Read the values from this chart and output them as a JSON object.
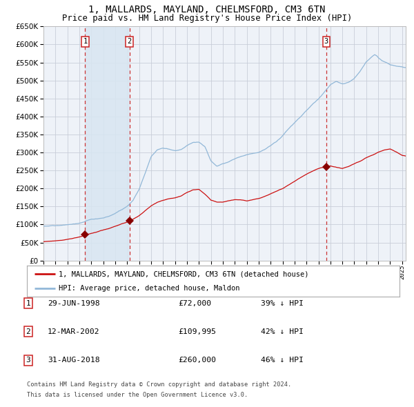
{
  "title": "1, MALLARDS, MAYLAND, CHELMSFORD, CM3 6TN",
  "subtitle": "Price paid vs. HM Land Registry's House Price Index (HPI)",
  "background_color": "#ffffff",
  "plot_bg_color": "#eef2f8",
  "grid_color": "#c8cdd8",
  "hpi_color": "#92b8d8",
  "price_color": "#cc1111",
  "sale_marker_color": "#880000",
  "dashed_line_color": "#cc3333",
  "shade_color": "#d8e6f2",
  "ylim": [
    0,
    650000
  ],
  "yticks": [
    0,
    50000,
    100000,
    150000,
    200000,
    250000,
    300000,
    350000,
    400000,
    450000,
    500000,
    550000,
    600000,
    650000
  ],
  "sale_dates": [
    1998.49,
    2002.19,
    2018.66
  ],
  "sale_prices": [
    72000,
    109995,
    260000
  ],
  "sale_labels": [
    "1",
    "2",
    "3"
  ],
  "sale_info": [
    {
      "label": "1",
      "date": "29-JUN-1998",
      "price": "£72,000",
      "hpi": "39% ↓ HPI"
    },
    {
      "label": "2",
      "date": "12-MAR-2002",
      "price": "£109,995",
      "hpi": "42% ↓ HPI"
    },
    {
      "label": "3",
      "date": "31-AUG-2018",
      "price": "£260,000",
      "hpi": "46% ↓ HPI"
    }
  ],
  "legend_line1": "1, MALLARDS, MAYLAND, CHELMSFORD, CM3 6TN (detached house)",
  "legend_line2": "HPI: Average price, detached house, Maldon",
  "footnote1": "Contains HM Land Registry data © Crown copyright and database right 2024.",
  "footnote2": "This data is licensed under the Open Government Licence v3.0.",
  "xstart": 1995.0,
  "xend": 2025.3,
  "hpi_keypoints_t": [
    1995.0,
    1995.5,
    1996.0,
    1996.5,
    1997.0,
    1997.5,
    1998.0,
    1998.5,
    1999.0,
    1999.5,
    2000.0,
    2000.5,
    2001.0,
    2001.5,
    2002.0,
    2002.5,
    2003.0,
    2003.5,
    2004.0,
    2004.5,
    2005.0,
    2005.5,
    2006.0,
    2006.5,
    2007.0,
    2007.5,
    2008.0,
    2008.5,
    2009.0,
    2009.5,
    2010.0,
    2010.5,
    2011.0,
    2011.5,
    2012.0,
    2012.5,
    2013.0,
    2013.5,
    2014.0,
    2014.5,
    2015.0,
    2015.5,
    2016.0,
    2016.5,
    2017.0,
    2017.5,
    2018.0,
    2018.5,
    2019.0,
    2019.5,
    2020.0,
    2020.5,
    2021.0,
    2021.5,
    2022.0,
    2022.5,
    2022.7,
    2022.9,
    2023.0,
    2023.3,
    2023.6,
    2024.0,
    2024.5,
    2025.0,
    2025.3
  ],
  "hpi_keypoints_v": [
    90000,
    91000,
    92000,
    93000,
    95000,
    98000,
    101000,
    107000,
    112000,
    114000,
    117000,
    122000,
    128000,
    138000,
    148000,
    165000,
    195000,
    240000,
    285000,
    305000,
    310000,
    308000,
    305000,
    308000,
    320000,
    330000,
    330000,
    318000,
    278000,
    262000,
    268000,
    272000,
    280000,
    287000,
    292000,
    296000,
    300000,
    308000,
    320000,
    332000,
    348000,
    368000,
    385000,
    400000,
    418000,
    435000,
    450000,
    470000,
    490000,
    498000,
    492000,
    498000,
    510000,
    530000,
    555000,
    570000,
    575000,
    572000,
    568000,
    560000,
    555000,
    548000,
    545000,
    542000,
    540000
  ],
  "price_keypoints_t": [
    1995.0,
    1995.5,
    1996.0,
    1996.5,
    1997.0,
    1997.5,
    1998.0,
    1998.49,
    1999.0,
    1999.5,
    2000.0,
    2000.5,
    2001.0,
    2001.5,
    2002.0,
    2002.19,
    2002.5,
    2003.0,
    2003.5,
    2004.0,
    2004.5,
    2005.0,
    2005.5,
    2006.0,
    2006.5,
    2007.0,
    2007.5,
    2008.0,
    2008.5,
    2009.0,
    2009.5,
    2010.0,
    2010.5,
    2011.0,
    2011.5,
    2012.0,
    2012.5,
    2013.0,
    2013.5,
    2014.0,
    2014.5,
    2015.0,
    2015.5,
    2016.0,
    2016.5,
    2017.0,
    2017.5,
    2018.0,
    2018.66,
    2019.0,
    2019.5,
    2020.0,
    2020.5,
    2021.0,
    2021.5,
    2022.0,
    2022.5,
    2023.0,
    2023.5,
    2024.0,
    2024.5,
    2025.0,
    2025.3
  ],
  "price_keypoints_v": [
    52000,
    53000,
    55000,
    57000,
    59000,
    62000,
    66000,
    72000,
    76000,
    80000,
    85000,
    90000,
    96000,
    103000,
    108000,
    109995,
    115000,
    125000,
    138000,
    152000,
    162000,
    168000,
    172000,
    175000,
    180000,
    190000,
    197000,
    198000,
    185000,
    168000,
    162000,
    162000,
    165000,
    168000,
    168000,
    165000,
    168000,
    172000,
    178000,
    185000,
    192000,
    200000,
    210000,
    220000,
    230000,
    240000,
    248000,
    255000,
    260000,
    262000,
    258000,
    255000,
    260000,
    268000,
    275000,
    285000,
    292000,
    300000,
    305000,
    308000,
    300000,
    290000,
    288000
  ]
}
